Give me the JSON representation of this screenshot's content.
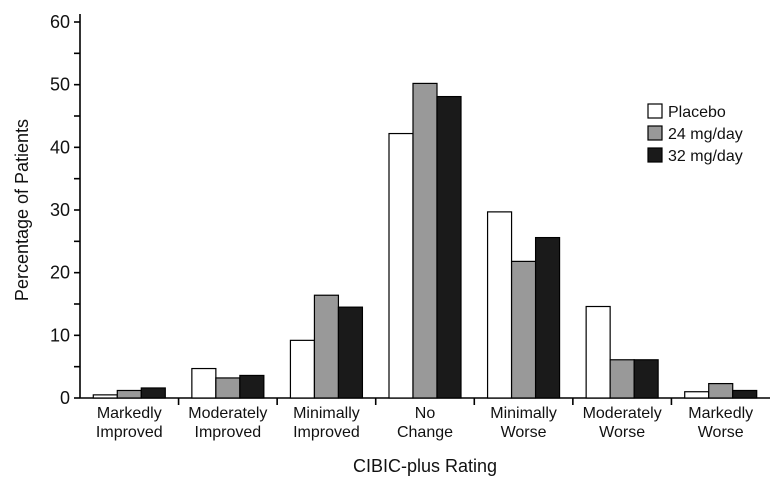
{
  "chart_data": {
    "type": "bar",
    "categories": [
      [
        "Markedly",
        "Improved"
      ],
      [
        "Moderately",
        "Improved"
      ],
      [
        "Minimally",
        "Improved"
      ],
      [
        "No",
        "Change"
      ],
      [
        "Minimally",
        "Worse"
      ],
      [
        "Moderately",
        "Worse"
      ],
      [
        "Markedly",
        "Worse"
      ]
    ],
    "series": [
      {
        "name": "Placebo",
        "color": "#ffffff",
        "values": [
          0.5,
          4.7,
          9.2,
          42.2,
          29.7,
          14.6,
          1.0
        ]
      },
      {
        "name": "24 mg/day",
        "color": "#999999",
        "values": [
          1.2,
          3.2,
          16.4,
          50.2,
          21.8,
          6.1,
          2.3
        ]
      },
      {
        "name": "32 mg/day",
        "color": "#1a1a1a",
        "values": [
          1.6,
          3.6,
          14.5,
          48.1,
          25.6,
          6.1,
          1.2
        ]
      }
    ],
    "title": "",
    "xlabel": "CIBIC-plus Rating",
    "ylabel": "Percentage of Patients",
    "ylim": [
      0,
      60
    ],
    "yticks": [
      0,
      10,
      20,
      30,
      40,
      50,
      60
    ],
    "grid": false,
    "legend_position": "right"
  }
}
